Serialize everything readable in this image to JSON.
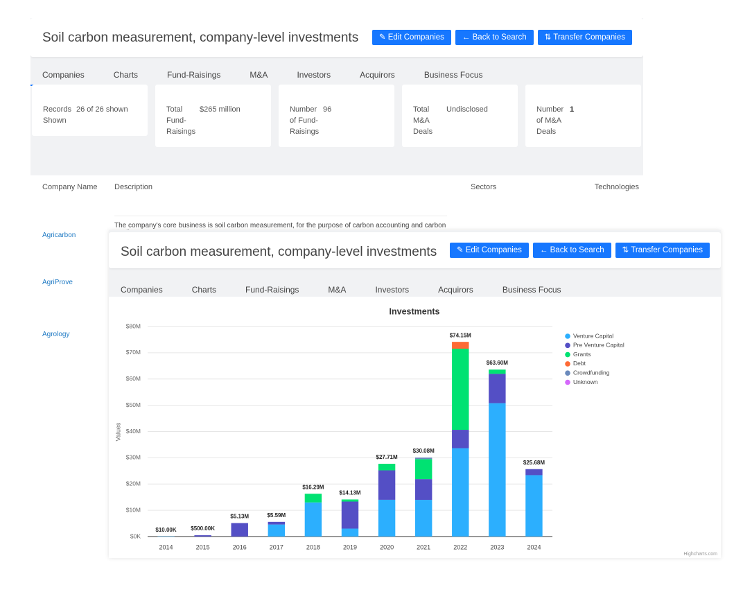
{
  "back_panel": {
    "header": {
      "title": "Soil carbon measurement, company-level investments",
      "buttons": [
        "Edit Companies",
        "Back to Search",
        "Transfer Companies"
      ]
    },
    "tabs": [
      "Companies",
      "Charts",
      "Fund-Raisings",
      "M&A",
      "Investors",
      "Acquirors",
      "Business Focus"
    ],
    "active_tab": 0,
    "stats": [
      {
        "label": "Records Shown",
        "value": "26 of 26 shown"
      },
      {
        "label": "Total Fund-Raisings",
        "value": "$265 million"
      },
      {
        "label": "Number of Fund-Raisings",
        "value": "96"
      },
      {
        "label": "Total M&A Deals",
        "value": "Undisclosed"
      },
      {
        "label": "Number of M&A Deals",
        "value": "1"
      }
    ],
    "table": {
      "columns": [
        "Company Name",
        "Description",
        "Sectors",
        "Technologies"
      ],
      "description": "The company's core business is soil carbon measurement, for the purpose of carbon accounting and carbon credit",
      "rows": [
        "Agricarbon",
        "AgriProve",
        "Agrology"
      ]
    }
  },
  "front_panel": {
    "header": {
      "title": "Soil carbon measurement, company-level investments",
      "buttons": [
        "Edit Companies",
        "Back to Search",
        "Transfer Companies"
      ]
    },
    "tabs": [
      "Companies",
      "Charts",
      "Fund-Raisings",
      "M&A",
      "Investors",
      "Acquirors",
      "Business Focus"
    ],
    "active_tab": 1
  },
  "chart_data": {
    "type": "bar",
    "stacked": true,
    "title": "Investments",
    "y_label": "Values",
    "credit": "Highcharts.com",
    "categories": [
      "2014",
      "2015",
      "2016",
      "2017",
      "2018",
      "2019",
      "2020",
      "2021",
      "2022",
      "2023",
      "2024"
    ],
    "series": [
      {
        "name": "Venture Capital",
        "color": "#2caffe",
        "values": [
          0.01,
          null,
          null,
          4.59,
          12.99,
          3.03,
          14.01,
          13.98,
          33.65,
          50.8,
          23.38
        ]
      },
      {
        "name": "Pre Venture Capital",
        "color": "#544fc5",
        "values": [
          null,
          0.5,
          5.13,
          1.0,
          null,
          10.3,
          11.2,
          7.9,
          7.0,
          11.2,
          2.3
        ]
      },
      {
        "name": "Grants",
        "color": "#00e272",
        "values": [
          null,
          null,
          null,
          null,
          3.3,
          0.8,
          2.5,
          7.6,
          30.9,
          1.6,
          null
        ]
      },
      {
        "name": "Debt",
        "color": "#fe6a35",
        "values": [
          null,
          null,
          null,
          null,
          null,
          null,
          null,
          null,
          2.6,
          null,
          null
        ]
      },
      {
        "name": "Crowdfunding",
        "color": "#6b8abc",
        "values": [
          null,
          null,
          null,
          null,
          null,
          null,
          null,
          0.6,
          null,
          null,
          null
        ]
      },
      {
        "name": "Unknown",
        "color": "#d568fb",
        "values": [
          null,
          null,
          null,
          null,
          null,
          null,
          null,
          null,
          null,
          null,
          null
        ]
      }
    ],
    "totals": [
      0.01,
      0.5,
      5.13,
      5.59,
      16.29,
      14.13,
      27.71,
      30.08,
      74.15,
      63.6,
      25.68
    ],
    "total_labels": [
      "$10.00K",
      "$500.00K",
      "$5.13M",
      "$5.59M",
      "$16.29M",
      "$14.13M",
      "$27.71M",
      "$30.08M",
      "$74.15M",
      "$63.60M",
      "$25.68M"
    ],
    "ylim": [
      0,
      80
    ],
    "yticks": [
      {
        "value": 0,
        "label": "$0K"
      },
      {
        "value": 10,
        "label": "$10M"
      },
      {
        "value": 20,
        "label": "$20M"
      },
      {
        "value": 30,
        "label": "$30M"
      },
      {
        "value": 40,
        "label": "$40M"
      },
      {
        "value": 50,
        "label": "$50M"
      },
      {
        "value": 60,
        "label": "$60M"
      },
      {
        "value": 70,
        "label": "$70M"
      },
      {
        "value": 80,
        "label": "$80M"
      }
    ],
    "grid": true,
    "legend": "right"
  }
}
